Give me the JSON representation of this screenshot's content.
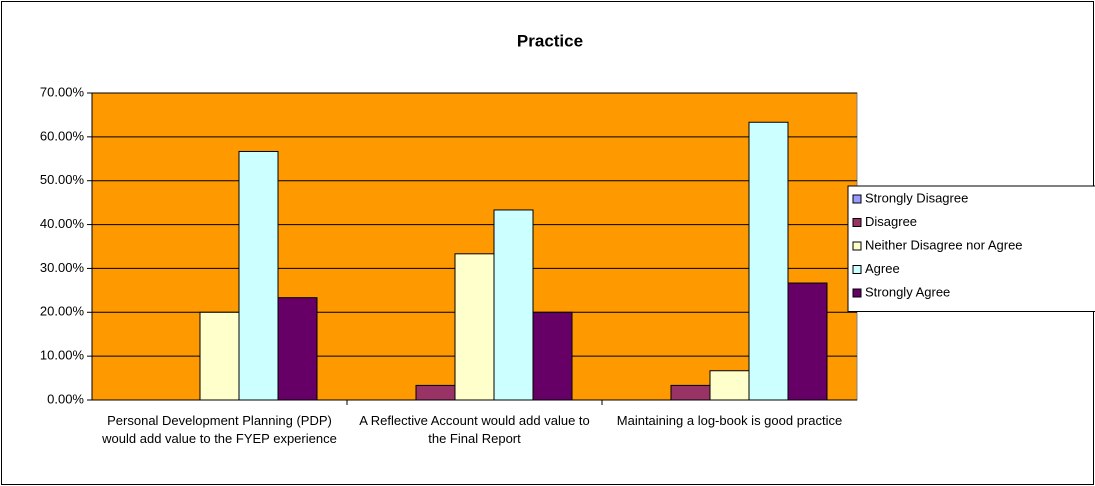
{
  "chart_data": {
    "type": "bar",
    "title": "Practice",
    "categories": [
      "Personal Development Planning (PDP) would add value to the FYEP experience",
      "A Reflective Account would add value to the Final Report",
      "Maintaining a log-book is good practice"
    ],
    "series": [
      {
        "name": "Strongly Disagree",
        "color": "#9999ff",
        "values": [
          0,
          0,
          0
        ]
      },
      {
        "name": "Disagree",
        "color": "#993366",
        "values": [
          0,
          3.33,
          3.33
        ]
      },
      {
        "name": "Neither Disagree nor Agree",
        "color": "#ffffcc",
        "values": [
          20,
          33.33,
          6.67
        ]
      },
      {
        "name": "Agree",
        "color": "#ccffff",
        "values": [
          56.67,
          43.33,
          63.33
        ]
      },
      {
        "name": "Strongly Agree",
        "color": "#660066",
        "values": [
          23.33,
          20,
          26.67
        ]
      }
    ],
    "ylim": [
      0,
      70
    ],
    "yticks": [
      {
        "value": 0,
        "label": "0.00%"
      },
      {
        "value": 10,
        "label": "10.00%"
      },
      {
        "value": 20,
        "label": "20.00%"
      },
      {
        "value": 30,
        "label": "30.00%"
      },
      {
        "value": 40,
        "label": "40.00%"
      },
      {
        "value": 50,
        "label": "50.00%"
      },
      {
        "value": 60,
        "label": "60.00%"
      },
      {
        "value": 70,
        "label": "70.00%"
      }
    ],
    "grid": true,
    "legend": "right",
    "plot_background": "#ff9900"
  }
}
